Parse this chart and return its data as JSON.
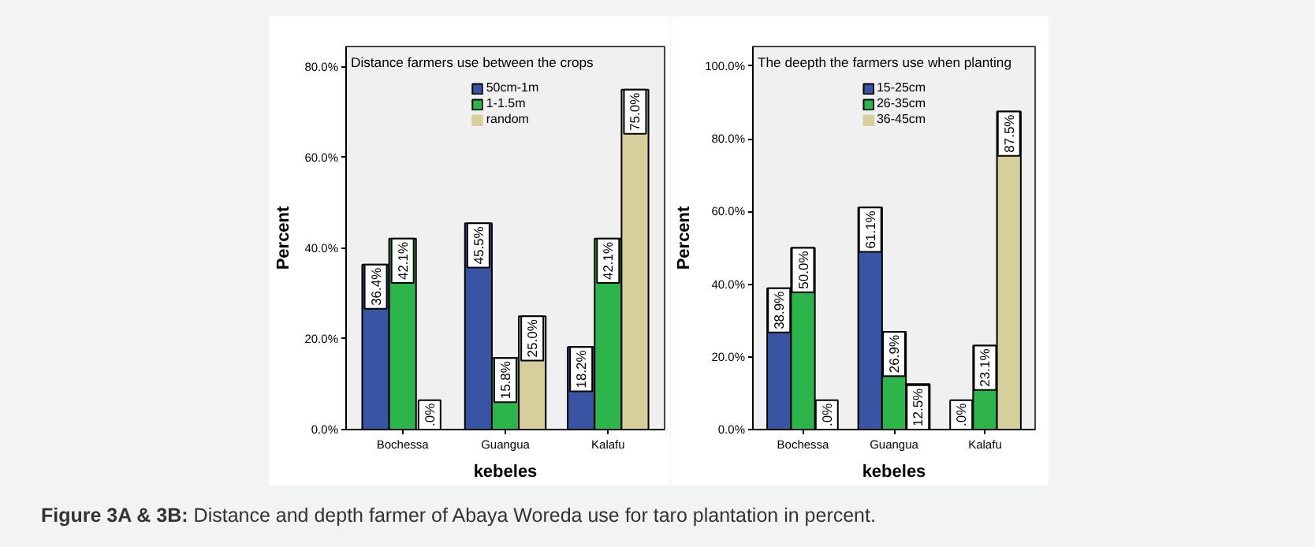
{
  "chart_data": [
    {
      "type": "bar",
      "title": "Distance farmers use between the crops",
      "xlabel": "kebeles",
      "ylabel": "Percent",
      "categories": [
        "Bochessa",
        "Guangua",
        "Kalafu"
      ],
      "series": [
        {
          "name": "50cm-1m",
          "color": "#3a54a4",
          "values": [
            36.4,
            45.5,
            18.2
          ],
          "value_labels": [
            "36.4%",
            "45.5%",
            "18.2%"
          ]
        },
        {
          "name": "1-1.5m",
          "color": "#2db54b",
          "values": [
            42.1,
            15.8,
            42.1
          ],
          "value_labels": [
            "42.1%",
            "15.8%",
            "42.1%"
          ]
        },
        {
          "name": "random",
          "color": "#d6cf9b",
          "values": [
            0,
            25.0,
            75.0
          ],
          "value_labels": [
            ".0%",
            "25.0%",
            "75.0%"
          ]
        }
      ],
      "ylim": [
        0,
        84.5
      ],
      "yticks": [
        {
          "value": 0,
          "label": "0.0%"
        },
        {
          "value": 20,
          "label": "20.0%"
        },
        {
          "value": 40,
          "label": "40.0%"
        },
        {
          "value": 60,
          "label": "60.0%"
        },
        {
          "value": 80,
          "label": "80.0%"
        }
      ],
      "legend": "top",
      "grid": false,
      "annotations": [
        "Figure 3A & 3B:",
        "Distance and depth farmer of Abaya Woreda use for taro plantation in percent."
      ]
    },
    {
      "type": "bar",
      "title": "The deepth the farmers use when planting",
      "xlabel": "kebeles",
      "ylabel": "Percent",
      "categories": [
        "Bochessa",
        "Guangua",
        "Kalafu"
      ],
      "series": [
        {
          "name": "15-25cm",
          "color": "#3a54a4",
          "values": [
            38.9,
            61.1,
            0
          ],
          "value_labels": [
            "38.9%",
            "61.1%",
            ".0%"
          ]
        },
        {
          "name": "26-35cm",
          "color": "#2db54b",
          "values": [
            50.0,
            26.9,
            23.1
          ],
          "value_labels": [
            "50.0%",
            "26.9%",
            "23.1%"
          ]
        },
        {
          "name": "36-45cm",
          "color": "#d6cf9b",
          "values": [
            0,
            12.5,
            87.5
          ],
          "value_labels": [
            ".0%",
            "12.5%",
            "87.5%"
          ]
        }
      ],
      "ylim": [
        0,
        105.4
      ],
      "yticks": [
        {
          "value": 0,
          "label": "0.0%"
        },
        {
          "value": 20,
          "label": "20.0%"
        },
        {
          "value": 40,
          "label": "40.0%"
        },
        {
          "value": 60,
          "label": "60.0%"
        },
        {
          "value": 80,
          "label": "80.0%"
        },
        {
          "value": 100,
          "label": "100.0%"
        }
      ],
      "legend": "top",
      "grid": false
    }
  ]
}
